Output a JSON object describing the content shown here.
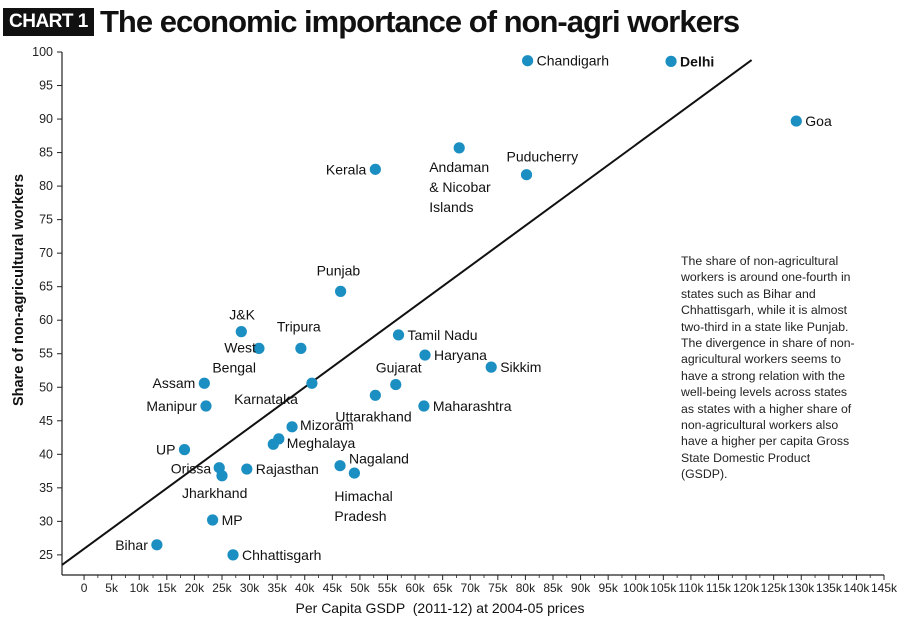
{
  "header": {
    "tag": "CHART 1",
    "title": "The economic importance of non-agri workers"
  },
  "note": "The share of non-agricultural workers is around one-fourth in states such as Bihar and Chhattisgarh, while it is almost two-third in a state like Punjab. The divergence in share of non-agricultural workers seems to have a strong relation with the well-being levels across states as states with a higher share of non-agricultural workers also have a higher per capita Gross State Domestic Product (GSDP).",
  "colors": {
    "point": "#1b8ec2",
    "line": "#111111",
    "axis": "#222222"
  },
  "chart_data": {
    "type": "scatter",
    "title": "The economic importance of non-agri workers",
    "xlabel": "Per Capita GSDP  (2011-12) at 2004-05 prices",
    "ylabel": "Share of non-agricultural workers",
    "xlim": [
      -4000,
      145000
    ],
    "ylim": [
      22,
      100
    ],
    "x_ticks": [
      0,
      5000,
      10000,
      15000,
      20000,
      25000,
      30000,
      35000,
      40000,
      45000,
      50000,
      55000,
      60000,
      65000,
      70000,
      75000,
      80000,
      85000,
      90000,
      95000,
      100000,
      105000,
      110000,
      115000,
      120000,
      125000,
      130000,
      135000,
      140000,
      145000
    ],
    "x_tick_labels": [
      "0",
      "5k",
      "10k",
      "15k",
      "20k",
      "25k",
      "30k",
      "35k",
      "40k",
      "45k",
      "50k",
      "55k",
      "60k",
      "65k",
      "70k",
      "75k",
      "80k",
      "85k",
      "90k",
      "95k",
      "100k",
      "105k",
      "110k",
      "115k",
      "120k",
      "125k",
      "130k",
      "135k",
      "140k",
      "145k"
    ],
    "y_ticks": [
      25,
      30,
      35,
      40,
      45,
      50,
      55,
      60,
      65,
      70,
      75,
      80,
      85,
      90,
      95,
      100
    ],
    "y_tick_labels": [
      "25",
      "30",
      "35",
      "40",
      "45",
      "50",
      "55",
      "60",
      "65",
      "70",
      "75",
      "80",
      "85",
      "90",
      "95",
      "100"
    ],
    "grid": false,
    "trendline": {
      "points": [
        [
          -4000,
          23.5
        ],
        [
          121000,
          98.8
        ]
      ]
    },
    "points": [
      {
        "label": "Bihar",
        "x": 13200,
        "y": 26.5,
        "label_side": "left"
      },
      {
        "label": "Chhattisgarh",
        "x": 27000,
        "y": 25.0,
        "label_side": "right"
      },
      {
        "label": "MP",
        "x": 23300,
        "y": 30.2,
        "label_side": "right"
      },
      {
        "label": "UP",
        "x": 18200,
        "y": 40.7,
        "label_side": "left"
      },
      {
        "label": "Orissa",
        "x": 24500,
        "y": 38.0,
        "label_side": "left"
      },
      {
        "label": "Jharkhand",
        "x": 25000,
        "y": 36.8,
        "label_side": "below"
      },
      {
        "label": "Rajasthan",
        "x": 29500,
        "y": 37.8,
        "label_side": "right"
      },
      {
        "label": "Assam",
        "x": 21800,
        "y": 50.6,
        "label_side": "left"
      },
      {
        "label": "Manipur",
        "x": 22100,
        "y": 47.2,
        "label_side": "left"
      },
      {
        "label": "J&K",
        "x": 28500,
        "y": 58.3,
        "label_side": "above"
      },
      {
        "label": "West Bengal",
        "x": 31700,
        "y": 55.8,
        "label_side": "left"
      },
      {
        "label": "Tripura",
        "x": 39300,
        "y": 55.8,
        "label_side": "above"
      },
      {
        "label": "Karnataka",
        "x": 41300,
        "y": 50.6,
        "label_side": "below-left"
      },
      {
        "label": "Mizoram",
        "x": 37700,
        "y": 44.1,
        "label_side": "right"
      },
      {
        "label": "Meghalaya",
        "x": 35300,
        "y": 42.3,
        "label_side": "right"
      },
      {
        "label": "",
        "x": 34300,
        "y": 41.5,
        "label_side": "none"
      },
      {
        "label": "Punjab",
        "x": 46500,
        "y": 64.3,
        "label_side": "above"
      },
      {
        "label": "Kerala",
        "x": 52800,
        "y": 82.5,
        "label_side": "left"
      },
      {
        "label": "Nagaland",
        "x": 46400,
        "y": 38.3,
        "label_side": "right"
      },
      {
        "label": "Himachal Pradesh",
        "x": 49000,
        "y": 37.2,
        "label_side": "below"
      },
      {
        "label": "Uttarakhand",
        "x": 52800,
        "y": 48.8,
        "label_side": "below"
      },
      {
        "label": "Gujarat",
        "x": 56500,
        "y": 50.4,
        "label_side": "above"
      },
      {
        "label": "Tamil  Nadu",
        "x": 57000,
        "y": 57.8,
        "label_side": "right"
      },
      {
        "label": "Haryana",
        "x": 61800,
        "y": 54.8,
        "label_side": "right"
      },
      {
        "label": "Maharashtra",
        "x": 61600,
        "y": 47.2,
        "label_side": "right"
      },
      {
        "label": "Sikkim",
        "x": 73800,
        "y": 53.0,
        "label_side": "right"
      },
      {
        "label": "Andaman & Nicobar Islands",
        "x": 68000,
        "y": 85.7,
        "label_side": "below"
      },
      {
        "label": "Puducherry",
        "x": 80200,
        "y": 81.7,
        "label_side": "above"
      },
      {
        "label": "Chandigarh",
        "x": 80400,
        "y": 98.7,
        "label_side": "right"
      },
      {
        "label": "Delhi",
        "x": 106400,
        "y": 98.6,
        "label_side": "right",
        "bold": true
      },
      {
        "label": "Goa",
        "x": 129100,
        "y": 89.7,
        "label_side": "right"
      }
    ]
  }
}
